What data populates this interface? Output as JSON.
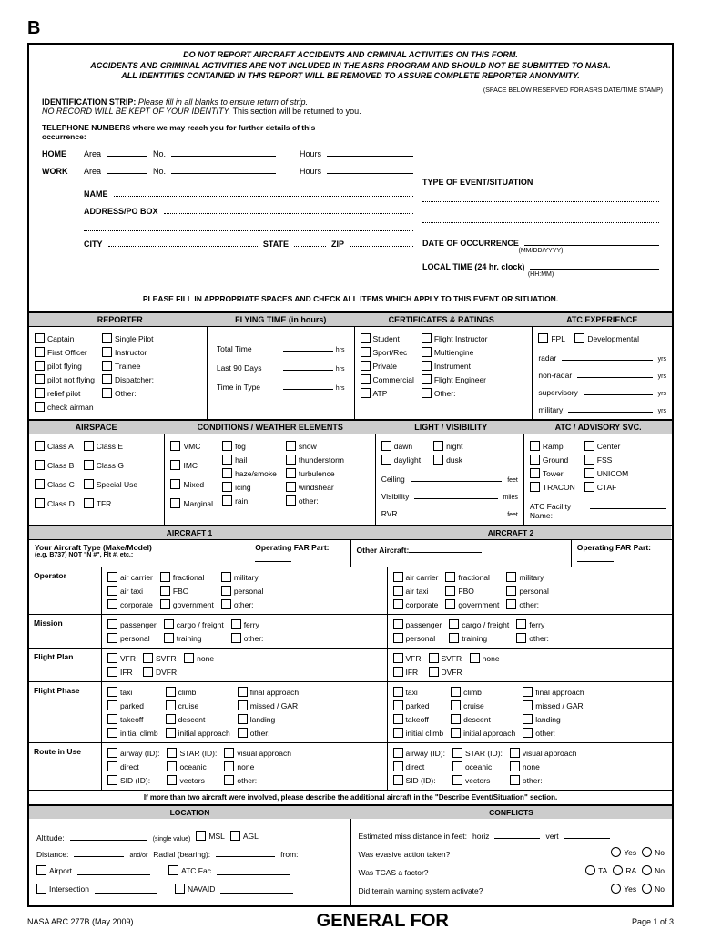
{
  "page_label": "B",
  "warning": {
    "l1": "DO NOT REPORT AIRCRAFT ACCIDENTS AND CRIMINAL ACTIVITIES ON THIS FORM.",
    "l2": "ACCIDENTS AND CRIMINAL ACTIVITIES ARE NOT INCLUDED IN THE ASRS PROGRAM AND SHOULD NOT BE SUBMITTED TO NASA.",
    "l3": "ALL IDENTITIES CONTAINED IN THIS REPORT WILL BE REMOVED TO ASSURE COMPLETE REPORTER ANONYMITY."
  },
  "space_note": "(SPACE BELOW RESERVED FOR ASRS DATE/TIME STAMP)",
  "id": {
    "head": "IDENTIFICATION STRIP:",
    "t1": "Please fill in all blanks to ensure return of strip.",
    "t2a": "NO RECORD WILL BE KEPT OF YOUR IDENTITY.",
    "t2b": "This section will be returned to you."
  },
  "tel": {
    "head": "TELEPHONE NUMBERS where we may reach you for further details of this occurrence:",
    "home": "HOME",
    "work": "WORK",
    "area": "Area",
    "no": "No.",
    "hours": "Hours"
  },
  "contact": {
    "name": "NAME",
    "addr": "ADDRESS/PO BOX",
    "city": "CITY",
    "state": "STATE",
    "zip": "ZIP"
  },
  "event": {
    "type": "TYPE OF EVENT/SITUATION",
    "date": "DATE OF OCCURRENCE",
    "date_fmt": "(MM/DD/YYYY)",
    "time": "LOCAL TIME (24 hr. clock)",
    "time_fmt": "(HH:MM)"
  },
  "instr": "PLEASE FILL IN APPROPRIATE SPACES AND CHECK ALL ITEMS WHICH APPLY TO THIS EVENT OR SITUATION.",
  "sec1": {
    "reporter": "REPORTER",
    "flying": "FLYING TIME (in hours)",
    "cert": "CERTIFICATES & RATINGS",
    "atc": "ATC EXPERIENCE"
  },
  "reporter": {
    "c1": [
      "Captain",
      "First Officer",
      "pilot flying",
      "pilot not flying",
      "relief pilot",
      "check airman"
    ],
    "c2": [
      "Single Pilot",
      "Instructor",
      "Trainee",
      "Dispatcher:",
      "Other:"
    ]
  },
  "flying": {
    "total": "Total Time",
    "last90": "Last 90 Days",
    "type": "Time in Type",
    "hrs": "hrs"
  },
  "cert": {
    "c1": [
      "Student",
      "Sport/Rec",
      "Private",
      "Commercial",
      "ATP"
    ],
    "c2": [
      "Flight Instructor",
      "Multiengine",
      "Instrument",
      "Flight Engineer",
      "Other:"
    ]
  },
  "atcexp": {
    "fpl": "FPL",
    "dev": "Developmental",
    "radar": "radar",
    "nonradar": "non-radar",
    "sup": "supervisory",
    "mil": "military",
    "yrs": "yrs"
  },
  "sec2": {
    "air": "AIRSPACE",
    "cond": "CONDITIONS / WEATHER ELEMENTS",
    "light": "LIGHT / VISIBILITY",
    "adv": "ATC / ADVISORY SVC."
  },
  "airspace": {
    "c1": [
      "Class A",
      "Class B",
      "Class C",
      "Class D"
    ],
    "c2": [
      "Class E",
      "Class G",
      "Special Use",
      "TFR"
    ]
  },
  "cond": {
    "c1": [
      "VMC",
      "IMC",
      "Mixed",
      "Marginal"
    ],
    "c2": [
      "fog",
      "hail",
      "haze/smoke",
      "icing",
      "rain"
    ],
    "c3": [
      "snow",
      "thunderstorm",
      "turbulence",
      "windshear",
      "other:"
    ]
  },
  "light": {
    "c": [
      "dawn",
      "daylight"
    ],
    "c2": [
      "night",
      "dusk"
    ],
    "ceil": "Ceiling",
    "vis": "Visibility",
    "rvr": "RVR",
    "feet": "feet",
    "miles": "miles"
  },
  "adv": {
    "c1": [
      "Ramp",
      "Ground",
      "Tower",
      "TRACON"
    ],
    "c2": [
      "Center",
      "FSS",
      "UNICOM",
      "CTAF"
    ],
    "fac": "ATC Facility Name:"
  },
  "ac": {
    "h1": "AIRCRAFT 1",
    "h2": "AIRCRAFT 2",
    "your": "Your Aircraft Type (Make/Model)",
    "your2": "(e.g. B737) NOT \"N #\", Flt #, etc.:",
    "other": "Other Aircraft:",
    "far": "Operating FAR Part:"
  },
  "acrows": {
    "operator": {
      "lbl": "Operator",
      "c1": [
        "air carrier",
        "air taxi",
        "corporate"
      ],
      "c2": [
        "fractional",
        "FBO",
        "government"
      ],
      "c3": [
        "military",
        "personal",
        "other:"
      ]
    },
    "mission": {
      "lbl": "Mission",
      "c1": [
        "passenger",
        "personal"
      ],
      "c2": [
        "cargo / freight",
        "training"
      ],
      "c3": [
        "ferry",
        "other:"
      ]
    },
    "plan": {
      "lbl": "Flight Plan",
      "c1": [
        "VFR",
        "IFR"
      ],
      "c2": [
        "SVFR",
        "DVFR"
      ],
      "c3": [
        "none"
      ]
    },
    "phase": {
      "lbl": "Flight Phase",
      "c1": [
        "taxi",
        "parked",
        "takeoff",
        "initial climb"
      ],
      "c2": [
        "climb",
        "cruise",
        "descent",
        "initial approach"
      ],
      "c3": [
        "final approach",
        "missed / GAR",
        "landing",
        "other:"
      ]
    },
    "route": {
      "lbl": "Route in Use",
      "c1": [
        "airway (ID):",
        "direct",
        "SID (ID):"
      ],
      "c2": [
        "STAR (ID):",
        "oceanic",
        "vectors"
      ],
      "c3": [
        "visual approach",
        "none",
        "other:"
      ]
    }
  },
  "note": "If more than two aircraft were involved, please describe the additional aircraft in the \"Describe Event/Situation\" section.",
  "loc": {
    "h1": "LOCATION",
    "h2": "CONFLICTS",
    "alt": "Altitude:",
    "sv": "(single value)",
    "msl": "MSL",
    "agl": "AGL",
    "dist": "Distance:",
    "ao": "and/or",
    "rad": "Radial (bearing):",
    "from": "from:",
    "air": "Airport",
    "atc": "ATC Fac",
    "int": "Intersection",
    "nav": "NAVAID"
  },
  "conf": {
    "miss": "Estimated miss distance in feet:",
    "horiz": "horiz",
    "vert": "vert",
    "evasive": "Was evasive action taken?",
    "yes": "Yes",
    "no": "No",
    "tcas": "Was TCAS a factor?",
    "ta": "TA",
    "ra": "RA",
    "terr": "Did terrain warning system activate?"
  },
  "footer": {
    "l": "NASA ARC 277B (May 2009)",
    "c": "GENERAL FOR",
    "r": "Page 1 of 3"
  }
}
